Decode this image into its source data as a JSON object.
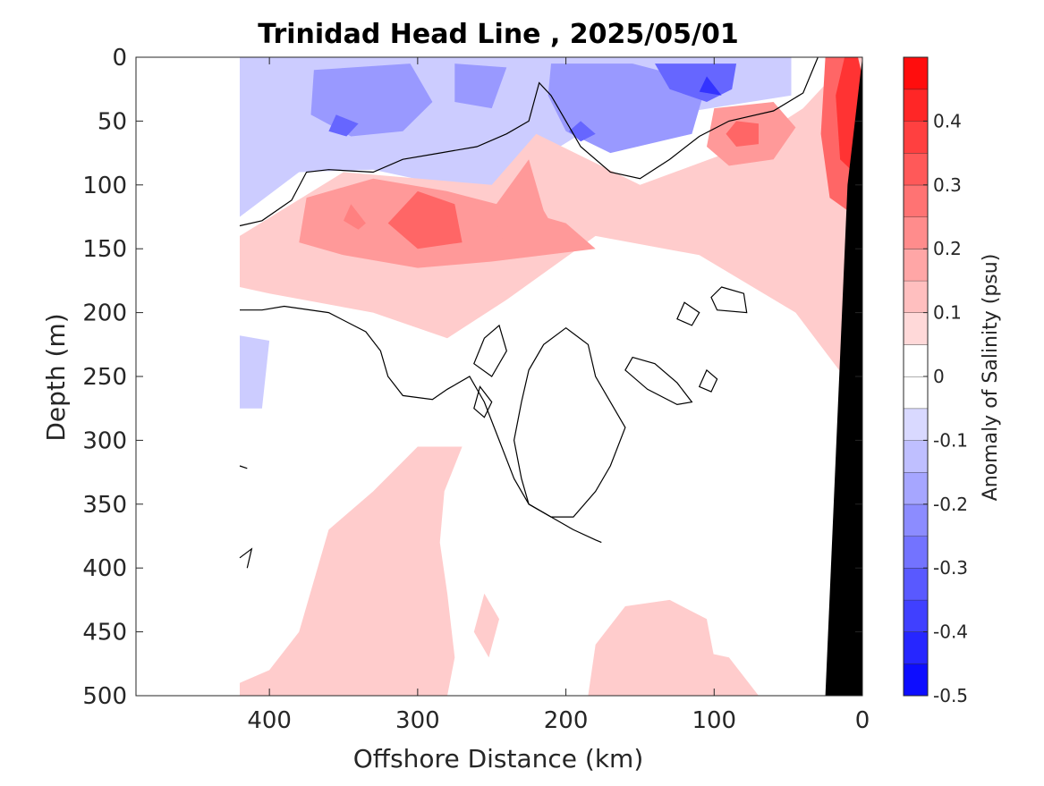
{
  "chart_data": {
    "type": "heatmap",
    "title": "Trinidad Head Line , 2025/05/01",
    "xlabel": "Offshore Distance (km)",
    "ylabel": "Depth (m)",
    "colorbar_label": "Anomaly of Salinity (psu)",
    "xlim": [
      490,
      0
    ],
    "ylim": [
      500,
      0
    ],
    "x_ticks": [
      400,
      300,
      200,
      100,
      0
    ],
    "x_tick_labels": [
      "400",
      "300",
      "200",
      "100",
      "0"
    ],
    "y_ticks": [
      0,
      50,
      100,
      150,
      200,
      250,
      300,
      350,
      400,
      450,
      500
    ],
    "y_tick_labels": [
      "0",
      "50",
      "100",
      "150",
      "200",
      "250",
      "300",
      "350",
      "400",
      "450",
      "500"
    ],
    "clim": [
      -0.5,
      0.5
    ],
    "colorbar_ticks": [
      0.4,
      0.3,
      0.2,
      0.1,
      0,
      -0.1,
      -0.2,
      -0.3,
      -0.4,
      -0.5
    ],
    "colorbar_tick_labels": [
      "0.4",
      "0.3",
      "0.2",
      "0.1",
      "0",
      "-0.1",
      "-0.2",
      "-0.3",
      "-0.4",
      "-0.5"
    ],
    "colorbar_levels": [
      -0.5,
      -0.45,
      -0.4,
      -0.35,
      -0.3,
      -0.25,
      -0.2,
      -0.15,
      -0.1,
      -0.05,
      0,
      0.05,
      0.1,
      0.15,
      0.2,
      0.25,
      0.3,
      0.35,
      0.4,
      0.45,
      0.5
    ],
    "colormap": {
      "negative": "#0000ff",
      "zero": "#ffffff",
      "positive": "#ff0000"
    },
    "bathymetry_color": "#000000",
    "zero_contour_color": "#000000",
    "data_extent_x_km": 420,
    "regions": [
      {
        "id": "region-neg-surface-light",
        "level": -0.1,
        "points": [
          [
            420,
            0
          ],
          [
            48,
            0
          ],
          [
            48,
            30
          ],
          [
            130,
            45
          ],
          [
            190,
            60
          ],
          [
            225,
            85
          ],
          [
            250,
            108
          ],
          [
            330,
            88
          ],
          [
            380,
            90
          ],
          [
            420,
            125
          ]
        ]
      },
      {
        "id": "region-neg-surface-a",
        "level": -0.2,
        "points": [
          [
            370,
            10
          ],
          [
            305,
            5
          ],
          [
            290,
            35
          ],
          [
            310,
            58
          ],
          [
            345,
            62
          ],
          [
            372,
            45
          ]
        ]
      },
      {
        "id": "region-neg-surface-b",
        "level": -0.2,
        "points": [
          [
            275,
            5
          ],
          [
            240,
            8
          ],
          [
            250,
            40
          ],
          [
            275,
            35
          ]
        ]
      },
      {
        "id": "region-neg-surface-c",
        "level": -0.2,
        "points": [
          [
            210,
            5
          ],
          [
            155,
            5
          ],
          [
            105,
            20
          ],
          [
            115,
            60
          ],
          [
            170,
            75
          ],
          [
            200,
            58
          ],
          [
            212,
            30
          ]
        ]
      },
      {
        "id": "region-neg-core-a",
        "level": -0.3,
        "points": [
          [
            355,
            45
          ],
          [
            340,
            52
          ],
          [
            348,
            62
          ],
          [
            360,
            58
          ]
        ]
      },
      {
        "id": "region-neg-core-b",
        "level": -0.3,
        "points": [
          [
            140,
            5
          ],
          [
            85,
            5
          ],
          [
            88,
            25
          ],
          [
            105,
            35
          ],
          [
            130,
            25
          ]
        ]
      },
      {
        "id": "region-neg-core-c",
        "level": -0.3,
        "points": [
          [
            190,
            50
          ],
          [
            180,
            60
          ],
          [
            190,
            66
          ],
          [
            198,
            58
          ]
        ]
      },
      {
        "id": "region-neg-core-d",
        "level": -0.4,
        "points": [
          [
            105,
            15
          ],
          [
            95,
            30
          ],
          [
            110,
            27
          ]
        ]
      },
      {
        "id": "region-neg-left-a",
        "level": -0.1,
        "points": [
          [
            420,
            70
          ],
          [
            400,
            80
          ],
          [
            405,
            100
          ],
          [
            420,
            100
          ]
        ]
      },
      {
        "id": "region-neg-left-b",
        "level": -0.1,
        "points": [
          [
            420,
            218
          ],
          [
            400,
            222
          ],
          [
            405,
            275
          ],
          [
            420,
            275
          ]
        ]
      },
      {
        "id": "region-pos-subsurface-light",
        "level": 0.1,
        "points": [
          [
            420,
            140
          ],
          [
            350,
            90
          ],
          [
            250,
            100
          ],
          [
            220,
            60
          ],
          [
            150,
            100
          ],
          [
            80,
            70
          ],
          [
            40,
            40
          ],
          [
            8,
            0
          ],
          [
            0,
            0
          ],
          [
            6,
            260
          ],
          [
            45,
            200
          ],
          [
            110,
            155
          ],
          [
            180,
            140
          ],
          [
            240,
            190
          ],
          [
            280,
            220
          ],
          [
            330,
            200
          ],
          [
            400,
            185
          ],
          [
            420,
            180
          ]
        ]
      },
      {
        "id": "region-pos-subsurface-mid",
        "level": 0.2,
        "points": [
          [
            375,
            110
          ],
          [
            330,
            95
          ],
          [
            280,
            105
          ],
          [
            230,
            120
          ],
          [
            200,
            130
          ],
          [
            180,
            150
          ],
          [
            250,
            160
          ],
          [
            300,
            165
          ],
          [
            350,
            155
          ],
          [
            380,
            145
          ]
        ]
      },
      {
        "id": "region-pos-subsurface-core-a",
        "level": 0.25,
        "points": [
          [
            345,
            115
          ],
          [
            335,
            130
          ],
          [
            340,
            135
          ],
          [
            350,
            128
          ]
        ]
      },
      {
        "id": "region-pos-subsurface-core-b",
        "level": 0.3,
        "points": [
          [
            300,
            105
          ],
          [
            275,
            115
          ],
          [
            270,
            145
          ],
          [
            300,
            150
          ],
          [
            320,
            130
          ]
        ]
      },
      {
        "id": "region-pos-subsurface-core-c",
        "level": 0.2,
        "points": [
          [
            225,
            80
          ],
          [
            215,
            120
          ],
          [
            200,
            150
          ],
          [
            240,
            150
          ],
          [
            250,
            120
          ]
        ]
      },
      {
        "id": "region-pos-shelf-mid",
        "level": 0.2,
        "points": [
          [
            100,
            40
          ],
          [
            60,
            35
          ],
          [
            45,
            55
          ],
          [
            60,
            80
          ],
          [
            90,
            85
          ],
          [
            105,
            70
          ]
        ]
      },
      {
        "id": "region-pos-shelf-core",
        "level": 0.3,
        "points": [
          [
            85,
            50
          ],
          [
            70,
            52
          ],
          [
            70,
            68
          ],
          [
            85,
            70
          ],
          [
            92,
            60
          ]
        ]
      },
      {
        "id": "region-pos-coast-a",
        "level": 0.3,
        "points": [
          [
            25,
            0
          ],
          [
            3,
            0
          ],
          [
            0,
            25
          ],
          [
            10,
            120
          ],
          [
            22,
            110
          ],
          [
            28,
            60
          ]
        ]
      },
      {
        "id": "region-pos-coast-b",
        "level": 0.4,
        "points": [
          [
            12,
            0
          ],
          [
            3,
            0
          ],
          [
            0,
            15
          ],
          [
            6,
            90
          ],
          [
            15,
            80
          ],
          [
            18,
            30
          ]
        ]
      },
      {
        "id": "region-pos-deep-a",
        "level": 0.1,
        "points": [
          [
            270,
            305
          ],
          [
            300,
            305
          ],
          [
            330,
            340
          ],
          [
            360,
            370
          ],
          [
            380,
            450
          ],
          [
            400,
            480
          ],
          [
            420,
            490
          ],
          [
            420,
            500
          ],
          [
            280,
            500
          ],
          [
            275,
            470
          ],
          [
            280,
            420
          ],
          [
            285,
            380
          ],
          [
            282,
            340
          ]
        ]
      },
      {
        "id": "region-pos-deep-b",
        "level": 0.1,
        "points": [
          [
            185,
            500
          ],
          [
            180,
            460
          ],
          [
            160,
            430
          ],
          [
            130,
            425
          ],
          [
            105,
            440
          ],
          [
            95,
            500
          ]
        ]
      },
      {
        "id": "region-pos-deep-c",
        "level": 0.1,
        "points": [
          [
            70,
            500
          ],
          [
            90,
            470
          ],
          [
            110,
            465
          ],
          [
            125,
            470
          ],
          [
            130,
            500
          ]
        ]
      },
      {
        "id": "region-pos-deep-d",
        "level": 0.1,
        "points": [
          [
            255,
            420
          ],
          [
            245,
            440
          ],
          [
            252,
            470
          ],
          [
            262,
            450
          ]
        ]
      }
    ],
    "zero_contours": [
      {
        "id": "contour-main-surface",
        "closed": false,
        "points": [
          [
            420,
            132
          ],
          [
            405,
            128
          ],
          [
            385,
            112
          ],
          [
            375,
            90
          ],
          [
            360,
            88
          ],
          [
            330,
            90
          ],
          [
            310,
            80
          ],
          [
            285,
            75
          ],
          [
            260,
            70
          ],
          [
            240,
            60
          ],
          [
            225,
            50
          ],
          [
            218,
            20
          ],
          [
            210,
            30
          ],
          [
            200,
            50
          ],
          [
            190,
            70
          ],
          [
            170,
            90
          ],
          [
            150,
            95
          ],
          [
            130,
            80
          ],
          [
            110,
            62
          ],
          [
            90,
            50
          ],
          [
            60,
            42
          ],
          [
            40,
            28
          ],
          [
            30,
            0
          ]
        ]
      },
      {
        "id": "contour-mid-left",
        "closed": false,
        "points": [
          [
            420,
            198
          ],
          [
            405,
            198
          ],
          [
            390,
            195
          ],
          [
            360,
            200
          ],
          [
            335,
            215
          ],
          [
            325,
            230
          ],
          [
            320,
            250
          ],
          [
            310,
            265
          ],
          [
            290,
            268
          ],
          [
            280,
            260
          ],
          [
            265,
            250
          ],
          [
            255,
            270
          ],
          [
            245,
            300
          ],
          [
            235,
            330
          ],
          [
            225,
            350
          ],
          [
            210,
            360
          ],
          [
            195,
            370
          ],
          [
            180,
            378
          ],
          [
            176,
            380
          ]
        ]
      },
      {
        "id": "contour-blob-a",
        "closed": true,
        "points": [
          [
            255,
            220
          ],
          [
            245,
            210
          ],
          [
            240,
            230
          ],
          [
            250,
            250
          ],
          [
            262,
            240
          ]
        ]
      },
      {
        "id": "contour-blob-b",
        "closed": true,
        "points": [
          [
            258,
            258
          ],
          [
            250,
            270
          ],
          [
            255,
            282
          ],
          [
            262,
            275
          ]
        ]
      },
      {
        "id": "contour-blob-c",
        "closed": true,
        "points": [
          [
            200,
            212
          ],
          [
            185,
            225
          ],
          [
            180,
            250
          ],
          [
            170,
            270
          ],
          [
            160,
            290
          ],
          [
            170,
            320
          ],
          [
            180,
            340
          ],
          [
            195,
            360
          ],
          [
            210,
            360
          ],
          [
            225,
            350
          ],
          [
            230,
            330
          ],
          [
            235,
            300
          ],
          [
            230,
            270
          ],
          [
            225,
            245
          ],
          [
            215,
            225
          ]
        ]
      },
      {
        "id": "contour-blob-d",
        "closed": true,
        "points": [
          [
            155,
            235
          ],
          [
            140,
            240
          ],
          [
            125,
            255
          ],
          [
            115,
            270
          ],
          [
            125,
            272
          ],
          [
            145,
            260
          ],
          [
            160,
            245
          ]
        ]
      },
      {
        "id": "contour-blob-e",
        "closed": true,
        "points": [
          [
            120,
            192
          ],
          [
            110,
            200
          ],
          [
            115,
            210
          ],
          [
            125,
            205
          ]
        ]
      },
      {
        "id": "contour-blob-f",
        "closed": true,
        "points": [
          [
            95,
            180
          ],
          [
            80,
            185
          ],
          [
            78,
            200
          ],
          [
            98,
            198
          ],
          [
            102,
            188
          ]
        ]
      },
      {
        "id": "contour-blob-g",
        "closed": true,
        "points": [
          [
            105,
            245
          ],
          [
            98,
            252
          ],
          [
            102,
            262
          ],
          [
            110,
            258
          ]
        ]
      },
      {
        "id": "contour-stub-a",
        "closed": false,
        "points": [
          [
            420,
            320
          ],
          [
            415,
            322
          ]
        ]
      },
      {
        "id": "contour-stub-b",
        "closed": false,
        "points": [
          [
            420,
            392
          ],
          [
            412,
            385
          ],
          [
            415,
            400
          ]
        ]
      }
    ],
    "bathymetry": {
      "points": [
        [
          0,
          0
        ],
        [
          10,
          100
        ],
        [
          25,
          500
        ],
        [
          0,
          500
        ]
      ]
    }
  }
}
